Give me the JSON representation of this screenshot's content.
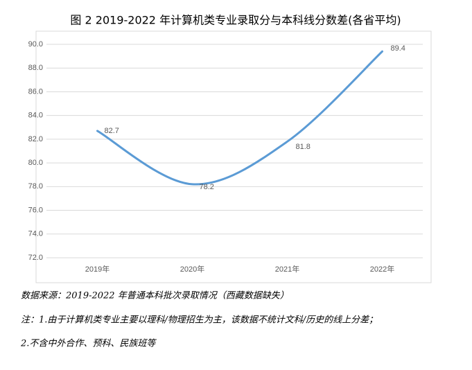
{
  "chart_data": {
    "type": "line",
    "title": "图 2 2019-2022 年计算机类专业录取分与本科线分数差(各省平均)",
    "categories": [
      "2019年",
      "2020年",
      "2021年",
      "2022年"
    ],
    "values": [
      82.7,
      78.2,
      81.8,
      89.4
    ],
    "color": "#5b9bd5",
    "ylim": [
      72,
      90
    ],
    "yticks": [
      {
        "value": 72,
        "label": "72.0"
      },
      {
        "value": 74,
        "label": "74.0"
      },
      {
        "value": 76,
        "label": "76.0"
      },
      {
        "value": 78,
        "label": "78.0"
      },
      {
        "value": 80,
        "label": "80.0"
      },
      {
        "value": 82,
        "label": "82.0"
      },
      {
        "value": 84,
        "label": "84.0"
      },
      {
        "value": 86,
        "label": "86.0"
      },
      {
        "value": 88,
        "label": "88.0"
      },
      {
        "value": 90,
        "label": "90.0"
      }
    ],
    "grid": true,
    "smooth": true
  },
  "notes": [
    "数据来源：2019-2022 年普通本科批次录取情况（西藏数据缺失）",
    "注：1.由于计算机类专业主要以理科/物理招生为主，该数据不统计文科/历史的线上分差；",
    "2.不含中外合作、预科、民族班等"
  ]
}
